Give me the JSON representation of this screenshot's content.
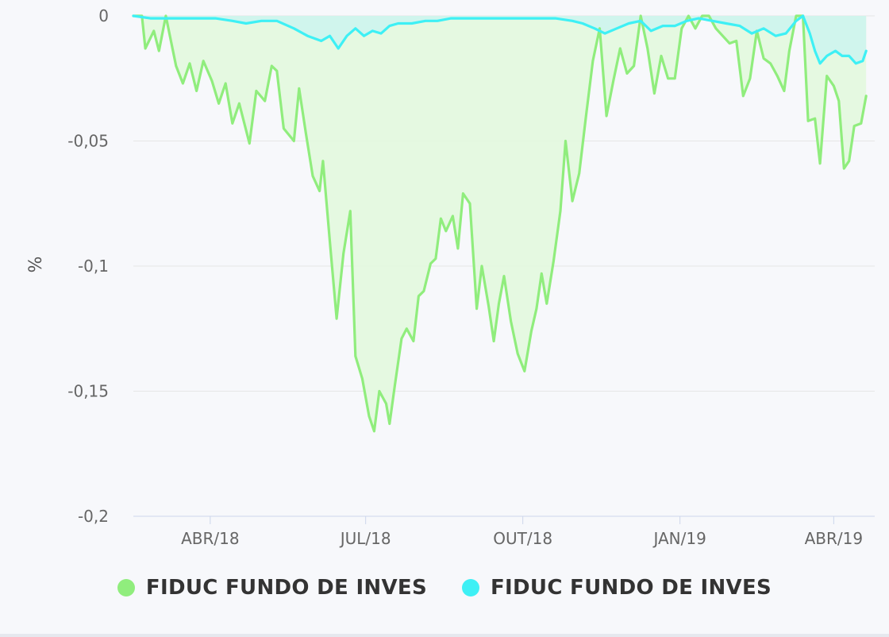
{
  "chart_data": {
    "type": "area",
    "title": "",
    "xlabel": "",
    "ylabel": "%",
    "ylim": [
      -0.2,
      0
    ],
    "y_ticks": [
      "0",
      "-0,05",
      "-0,1",
      "-0,15",
      "-0,2"
    ],
    "y_tick_values": [
      0,
      -0.05,
      -0.1,
      -0.15,
      -0.2
    ],
    "x_ticks": [
      "ABR/18",
      "JUL/18",
      "OUT/18",
      "JAN/19",
      "ABR/19"
    ],
    "x_tick_dates": [
      "2018-04-01",
      "2018-07-01",
      "2018-10-01",
      "2019-01-01",
      "2019-04-01"
    ],
    "xlim": [
      "2018-02-15",
      "2019-04-25"
    ],
    "grid": true,
    "legend_position": "bottom",
    "series": [
      {
        "name": "FIDUC FUNDO DE INVES",
        "color": "#90ed7d",
        "fill": "#e2f8de",
        "points": [
          [
            "2018-02-15",
            0
          ],
          [
            "2018-02-20",
            0
          ],
          [
            "2018-02-22",
            -0.013
          ],
          [
            "2018-02-27",
            -0.006
          ],
          [
            "2018-03-02",
            -0.014
          ],
          [
            "2018-03-06",
            0
          ],
          [
            "2018-03-12",
            -0.02
          ],
          [
            "2018-03-16",
            -0.027
          ],
          [
            "2018-03-20",
            -0.019
          ],
          [
            "2018-03-24",
            -0.03
          ],
          [
            "2018-03-28",
            -0.018
          ],
          [
            "2018-04-02",
            -0.026
          ],
          [
            "2018-04-06",
            -0.035
          ],
          [
            "2018-04-10",
            -0.027
          ],
          [
            "2018-04-14",
            -0.043
          ],
          [
            "2018-04-18",
            -0.035
          ],
          [
            "2018-04-24",
            -0.051
          ],
          [
            "2018-04-28",
            -0.03
          ],
          [
            "2018-05-03",
            -0.034
          ],
          [
            "2018-05-07",
            -0.02
          ],
          [
            "2018-05-10",
            -0.022
          ],
          [
            "2018-05-14",
            -0.045
          ],
          [
            "2018-05-20",
            -0.05
          ],
          [
            "2018-05-23",
            -0.029
          ],
          [
            "2018-05-27",
            -0.047
          ],
          [
            "2018-05-31",
            -0.064
          ],
          [
            "2018-06-04",
            -0.07
          ],
          [
            "2018-06-06",
            -0.058
          ],
          [
            "2018-06-10",
            -0.09
          ],
          [
            "2018-06-14",
            -0.121
          ],
          [
            "2018-06-18",
            -0.095
          ],
          [
            "2018-06-22",
            -0.078
          ],
          [
            "2018-06-25",
            -0.136
          ],
          [
            "2018-06-29",
            -0.145
          ],
          [
            "2018-07-03",
            -0.16
          ],
          [
            "2018-07-06",
            -0.166
          ],
          [
            "2018-07-09",
            -0.15
          ],
          [
            "2018-07-13",
            -0.155
          ],
          [
            "2018-07-15",
            -0.163
          ],
          [
            "2018-07-18",
            -0.148
          ],
          [
            "2018-07-22",
            -0.129
          ],
          [
            "2018-07-25",
            -0.125
          ],
          [
            "2018-07-29",
            -0.13
          ],
          [
            "2018-08-01",
            -0.112
          ],
          [
            "2018-08-04",
            -0.11
          ],
          [
            "2018-08-08",
            -0.099
          ],
          [
            "2018-08-11",
            -0.097
          ],
          [
            "2018-08-14",
            -0.081
          ],
          [
            "2018-08-17",
            -0.086
          ],
          [
            "2018-08-21",
            -0.08
          ],
          [
            "2018-08-24",
            -0.093
          ],
          [
            "2018-08-27",
            -0.071
          ],
          [
            "2018-08-31",
            -0.075
          ],
          [
            "2018-09-04",
            -0.117
          ],
          [
            "2018-09-07",
            -0.1
          ],
          [
            "2018-09-11",
            -0.116
          ],
          [
            "2018-09-14",
            -0.13
          ],
          [
            "2018-09-17",
            -0.115
          ],
          [
            "2018-09-20",
            -0.104
          ],
          [
            "2018-09-24",
            -0.122
          ],
          [
            "2018-09-28",
            -0.135
          ],
          [
            "2018-10-02",
            -0.142
          ],
          [
            "2018-10-06",
            -0.126
          ],
          [
            "2018-10-09",
            -0.117
          ],
          [
            "2018-10-12",
            -0.103
          ],
          [
            "2018-10-15",
            -0.115
          ],
          [
            "2018-10-19",
            -0.098
          ],
          [
            "2018-10-23",
            -0.078
          ],
          [
            "2018-10-26",
            -0.05
          ],
          [
            "2018-10-30",
            -0.074
          ],
          [
            "2018-11-03",
            -0.063
          ],
          [
            "2018-11-07",
            -0.04
          ],
          [
            "2018-11-11",
            -0.018
          ],
          [
            "2018-11-15",
            -0.005
          ],
          [
            "2018-11-19",
            -0.04
          ],
          [
            "2018-11-23",
            -0.026
          ],
          [
            "2018-11-27",
            -0.013
          ],
          [
            "2018-12-01",
            -0.023
          ],
          [
            "2018-12-05",
            -0.02
          ],
          [
            "2018-12-09",
            0
          ],
          [
            "2018-12-13",
            -0.013
          ],
          [
            "2018-12-17",
            -0.031
          ],
          [
            "2018-12-21",
            -0.016
          ],
          [
            "2018-12-25",
            -0.025
          ],
          [
            "2018-12-29",
            -0.025
          ],
          [
            "2019-01-02",
            -0.005
          ],
          [
            "2019-01-06",
            0
          ],
          [
            "2019-01-10",
            -0.005
          ],
          [
            "2019-01-14",
            0
          ],
          [
            "2019-01-18",
            0
          ],
          [
            "2019-01-22",
            -0.005
          ],
          [
            "2019-01-26",
            -0.008
          ],
          [
            "2019-01-30",
            -0.011
          ],
          [
            "2019-02-03",
            -0.01
          ],
          [
            "2019-02-07",
            -0.032
          ],
          [
            "2019-02-11",
            -0.025
          ],
          [
            "2019-02-15",
            -0.006
          ],
          [
            "2019-02-19",
            -0.017
          ],
          [
            "2019-02-23",
            -0.019
          ],
          [
            "2019-02-27",
            -0.024
          ],
          [
            "2019-03-03",
            -0.03
          ],
          [
            "2019-03-06",
            -0.014
          ],
          [
            "2019-03-10",
            0
          ],
          [
            "2019-03-14",
            0
          ],
          [
            "2019-03-17",
            -0.042
          ],
          [
            "2019-03-21",
            -0.041
          ],
          [
            "2019-03-24",
            -0.059
          ],
          [
            "2019-03-28",
            -0.024
          ],
          [
            "2019-04-01",
            -0.028
          ],
          [
            "2019-04-04",
            -0.034
          ],
          [
            "2019-04-07",
            -0.061
          ],
          [
            "2019-04-10",
            -0.058
          ],
          [
            "2019-04-13",
            -0.044
          ],
          [
            "2019-04-17",
            -0.043
          ],
          [
            "2019-04-20",
            -0.032
          ]
        ]
      },
      {
        "name": "FIDUC FUNDO DE INVES",
        "color": "#3ef0f5",
        "fill": "#cdf5ef",
        "points": [
          [
            "2018-02-15",
            0
          ],
          [
            "2018-02-25",
            -0.001
          ],
          [
            "2018-03-05",
            -0.001
          ],
          [
            "2018-03-15",
            -0.001
          ],
          [
            "2018-03-25",
            -0.001
          ],
          [
            "2018-04-04",
            -0.001
          ],
          [
            "2018-04-14",
            -0.002
          ],
          [
            "2018-04-22",
            -0.003
          ],
          [
            "2018-05-01",
            -0.002
          ],
          [
            "2018-05-10",
            -0.002
          ],
          [
            "2018-05-20",
            -0.005
          ],
          [
            "2018-05-28",
            -0.008
          ],
          [
            "2018-06-05",
            -0.01
          ],
          [
            "2018-06-10",
            -0.008
          ],
          [
            "2018-06-15",
            -0.013
          ],
          [
            "2018-06-20",
            -0.008
          ],
          [
            "2018-06-25",
            -0.005
          ],
          [
            "2018-06-30",
            -0.008
          ],
          [
            "2018-07-05",
            -0.006
          ],
          [
            "2018-07-10",
            -0.007
          ],
          [
            "2018-07-15",
            -0.004
          ],
          [
            "2018-07-20",
            -0.003
          ],
          [
            "2018-07-28",
            -0.003
          ],
          [
            "2018-08-05",
            -0.002
          ],
          [
            "2018-08-12",
            -0.002
          ],
          [
            "2018-08-20",
            -0.001
          ],
          [
            "2018-08-30",
            -0.001
          ],
          [
            "2018-09-10",
            -0.001
          ],
          [
            "2018-09-20",
            -0.001
          ],
          [
            "2018-10-01",
            -0.001
          ],
          [
            "2018-10-10",
            -0.001
          ],
          [
            "2018-10-20",
            -0.001
          ],
          [
            "2018-10-30",
            -0.002
          ],
          [
            "2018-11-05",
            -0.003
          ],
          [
            "2018-11-12",
            -0.005
          ],
          [
            "2018-11-18",
            -0.007
          ],
          [
            "2018-11-25",
            -0.005
          ],
          [
            "2018-12-02",
            -0.003
          ],
          [
            "2018-12-09",
            -0.002
          ],
          [
            "2018-12-15",
            -0.006
          ],
          [
            "2018-12-22",
            -0.004
          ],
          [
            "2018-12-29",
            -0.004
          ],
          [
            "2019-01-05",
            -0.002
          ],
          [
            "2019-01-12",
            -0.001
          ],
          [
            "2019-01-20",
            -0.002
          ],
          [
            "2019-01-28",
            -0.003
          ],
          [
            "2019-02-05",
            -0.004
          ],
          [
            "2019-02-12",
            -0.007
          ],
          [
            "2019-02-19",
            -0.005
          ],
          [
            "2019-02-26",
            -0.008
          ],
          [
            "2019-03-04",
            -0.007
          ],
          [
            "2019-03-10",
            -0.002
          ],
          [
            "2019-03-14",
            0
          ],
          [
            "2019-03-18",
            -0.007
          ],
          [
            "2019-03-21",
            -0.014
          ],
          [
            "2019-03-24",
            -0.019
          ],
          [
            "2019-03-28",
            -0.016
          ],
          [
            "2019-04-02",
            -0.014
          ],
          [
            "2019-04-06",
            -0.016
          ],
          [
            "2019-04-10",
            -0.016
          ],
          [
            "2019-04-14",
            -0.019
          ],
          [
            "2019-04-18",
            -0.018
          ],
          [
            "2019-04-20",
            -0.014
          ]
        ]
      }
    ]
  }
}
